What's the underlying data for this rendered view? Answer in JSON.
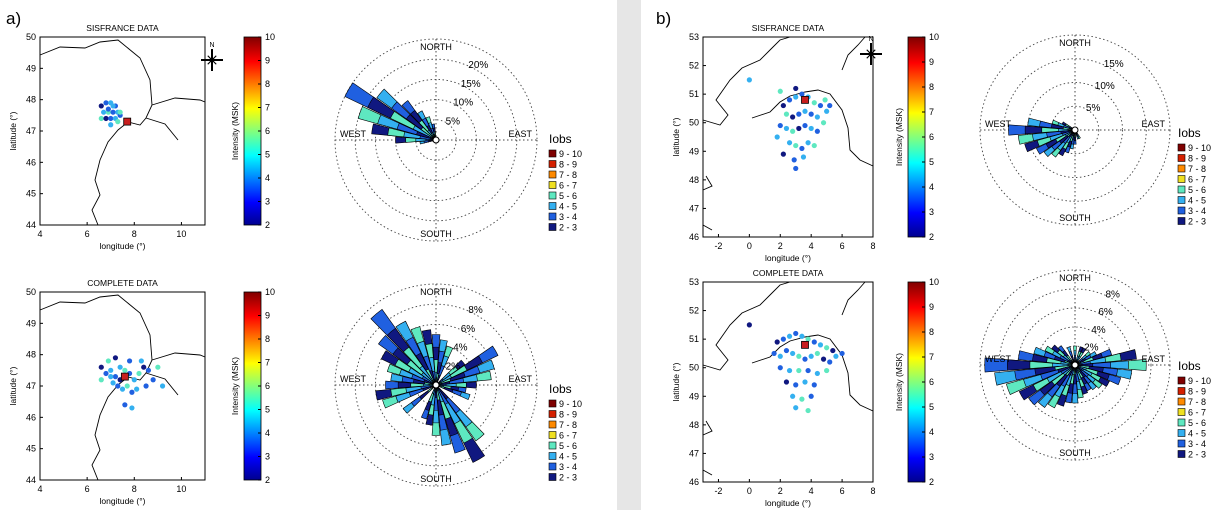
{
  "panel_labels": [
    "a)",
    "b)"
  ],
  "colors": {
    "divider": "#e6e6e6",
    "frame": "#000000",
    "grid": "#444444",
    "rose_edge": "#000000",
    "epicenter": "#c81e1e"
  },
  "colorbar": {
    "label": "Intensity (MSK)",
    "ticks": [
      "2",
      "3",
      "4",
      "5",
      "6",
      "7",
      "8",
      "9",
      "10"
    ],
    "range": [
      2,
      10
    ]
  },
  "legend": {
    "title": "Iobs",
    "entries": [
      "9 - 10",
      "8 - 9",
      "7 - 8",
      "6 - 7",
      "5 - 6",
      "4 - 5",
      "3 - 4",
      "2 - 3"
    ],
    "colors": [
      "#7f0000",
      "#d42000",
      "#ff8a00",
      "#f0e020",
      "#5ee8c0",
      "#34b0f0",
      "#2060e0",
      "#101880"
    ]
  },
  "compass": {
    "north_letter": "N"
  },
  "rose_directions": {
    "north": "NORTH",
    "south": "SOUTH",
    "east": "EAST",
    "west": "WEST"
  },
  "chart_data": [
    {
      "panel": "a)",
      "type": "scatter",
      "title": "SISFRANCE DATA",
      "xlabel": "longitude (°)",
      "ylabel": "latitude (°)",
      "xlim": [
        4,
        11
      ],
      "ylim": [
        44,
        50
      ],
      "xticks": [
        "4",
        "6",
        "8",
        "10"
      ],
      "yticks": [
        "44",
        "45",
        "46",
        "47",
        "48",
        "49",
        "50"
      ],
      "epicenter": [
        7.7,
        47.3
      ],
      "points": [
        [
          6.6,
          47.8
        ],
        [
          6.8,
          47.9
        ],
        [
          7.0,
          47.9
        ],
        [
          7.2,
          47.8
        ],
        [
          6.7,
          47.6
        ],
        [
          6.9,
          47.6
        ],
        [
          7.1,
          47.6
        ],
        [
          7.3,
          47.6
        ],
        [
          6.6,
          47.4
        ],
        [
          6.8,
          47.4
        ],
        [
          7.0,
          47.4
        ],
        [
          7.2,
          47.4
        ],
        [
          7.4,
          47.5
        ],
        [
          7.0,
          47.2
        ],
        [
          7.3,
          47.3
        ],
        [
          6.9,
          47.7
        ],
        [
          7.1,
          47.8
        ],
        [
          7.4,
          47.6
        ]
      ]
    },
    {
      "panel": "a)",
      "type": "rose",
      "title": "",
      "radial_ticks": [
        "5%",
        "10%",
        "15%",
        "20%"
      ],
      "rmax": 25,
      "sectors": [
        [
          300,
          25
        ],
        [
          310,
          18
        ],
        [
          290,
          20
        ],
        [
          280,
          16
        ],
        [
          320,
          12
        ],
        [
          330,
          8
        ],
        [
          340,
          6
        ],
        [
          270,
          10
        ],
        [
          350,
          4
        ],
        [
          260,
          4
        ]
      ]
    },
    {
      "panel": "a)",
      "type": "scatter",
      "title": "COMPLETE DATA",
      "xlabel": "longitude (°)",
      "ylabel": "latitude (°)",
      "xlim": [
        4,
        11
      ],
      "ylim": [
        44,
        50
      ],
      "xticks": [
        "4",
        "6",
        "8",
        "10"
      ],
      "yticks": [
        "44",
        "45",
        "46",
        "47",
        "48",
        "49",
        "50"
      ],
      "epicenter": [
        7.6,
        47.3
      ],
      "points": [
        [
          6.6,
          47.6
        ],
        [
          6.8,
          47.4
        ],
        [
          7.0,
          47.5
        ],
        [
          7.2,
          47.3
        ],
        [
          7.4,
          47.6
        ],
        [
          7.6,
          47.5
        ],
        [
          7.8,
          47.4
        ],
        [
          8.0,
          47.2
        ],
        [
          8.2,
          47.4
        ],
        [
          8.4,
          47.6
        ],
        [
          8.6,
          47.5
        ],
        [
          7.1,
          47.1
        ],
        [
          7.3,
          47.0
        ],
        [
          7.5,
          46.9
        ],
        [
          7.7,
          47.0
        ],
        [
          7.9,
          46.8
        ],
        [
          8.1,
          46.9
        ],
        [
          6.9,
          47.8
        ],
        [
          7.2,
          47.9
        ],
        [
          7.8,
          47.8
        ],
        [
          8.3,
          47.8
        ],
        [
          8.8,
          47.2
        ],
        [
          9.2,
          47.0
        ],
        [
          9.0,
          47.6
        ],
        [
          7.6,
          46.4
        ],
        [
          7.9,
          46.3
        ],
        [
          6.6,
          47.2
        ],
        [
          7.4,
          47.2
        ],
        [
          8.5,
          47.0
        ],
        [
          7.0,
          47.3
        ]
      ]
    },
    {
      "panel": "a)",
      "type": "rose",
      "title": "",
      "radial_ticks": [
        "2%",
        "4%",
        "6%",
        "8%"
      ],
      "rmax": 10,
      "sectors": [
        [
          320,
          9.2
        ],
        [
          330,
          7
        ],
        [
          340,
          6
        ],
        [
          350,
          5.5
        ],
        [
          0,
          5
        ],
        [
          10,
          4.5
        ],
        [
          20,
          4
        ],
        [
          50,
          3.5
        ],
        [
          60,
          6.8
        ],
        [
          70,
          6
        ],
        [
          80,
          5.5
        ],
        [
          90,
          4
        ],
        [
          100,
          3
        ],
        [
          110,
          3.5
        ],
        [
          140,
          6.8
        ],
        [
          150,
          8.5
        ],
        [
          160,
          7
        ],
        [
          170,
          6
        ],
        [
          180,
          5
        ],
        [
          190,
          4
        ],
        [
          200,
          3.5
        ],
        [
          230,
          4
        ],
        [
          250,
          5.5
        ],
        [
          260,
          6
        ],
        [
          270,
          5
        ],
        [
          280,
          4.5
        ],
        [
          290,
          5
        ],
        [
          300,
          6
        ],
        [
          310,
          7
        ]
      ]
    },
    {
      "panel": "b)",
      "type": "scatter",
      "title": "SISFRANCE DATA",
      "xlabel": "longitude (°)",
      "ylabel": "latitude (°)",
      "xlim": [
        -3,
        8
      ],
      "ylim": [
        46,
        53
      ],
      "xticks": [
        "-2",
        "0",
        "2",
        "4",
        "6",
        "8"
      ],
      "yticks": [
        "46",
        "47",
        "48",
        "49",
        "50",
        "51",
        "52",
        "53"
      ],
      "epicenter": [
        3.6,
        50.8
      ],
      "points": [
        [
          2.2,
          50.6
        ],
        [
          2.6,
          50.8
        ],
        [
          3.0,
          50.9
        ],
        [
          3.4,
          51.0
        ],
        [
          3.8,
          50.9
        ],
        [
          4.2,
          50.7
        ],
        [
          4.6,
          50.6
        ],
        [
          5.0,
          50.4
        ],
        [
          2.4,
          50.3
        ],
        [
          2.8,
          50.2
        ],
        [
          3.2,
          50.3
        ],
        [
          3.6,
          50.4
        ],
        [
          4.0,
          50.3
        ],
        [
          4.4,
          50.2
        ],
        [
          4.8,
          50.0
        ],
        [
          2.0,
          49.9
        ],
        [
          2.4,
          49.8
        ],
        [
          2.8,
          49.7
        ],
        [
          3.2,
          49.8
        ],
        [
          3.6,
          49.9
        ],
        [
          4.0,
          49.8
        ],
        [
          4.4,
          49.7
        ],
        [
          2.6,
          49.3
        ],
        [
          3.0,
          49.2
        ],
        [
          3.4,
          49.1
        ],
        [
          3.8,
          49.3
        ],
        [
          4.2,
          49.2
        ],
        [
          2.2,
          48.9
        ],
        [
          2.9,
          48.7
        ],
        [
          3.5,
          48.8
        ],
        [
          3.0,
          48.4
        ],
        [
          1.8,
          49.5
        ],
        [
          4.9,
          50.8
        ],
        [
          5.2,
          50.6
        ],
        [
          0.0,
          51.5
        ],
        [
          2.0,
          51.1
        ],
        [
          3.0,
          51.2
        ]
      ]
    },
    {
      "panel": "b)",
      "type": "rose",
      "title": "",
      "radial_ticks": [
        "5%",
        "10%",
        "15%"
      ],
      "rmax": 20,
      "sectors": [
        [
          270,
          14
        ],
        [
          280,
          10
        ],
        [
          260,
          12
        ],
        [
          250,
          11
        ],
        [
          240,
          9
        ],
        [
          230,
          8
        ],
        [
          220,
          7
        ],
        [
          210,
          6
        ],
        [
          200,
          5
        ],
        [
          190,
          4
        ],
        [
          290,
          5
        ],
        [
          300,
          3
        ],
        [
          180,
          3
        ],
        [
          160,
          2
        ],
        [
          150,
          2
        ]
      ]
    },
    {
      "panel": "b)",
      "type": "scatter",
      "title": "COMPLETE DATA",
      "xlabel": "longitude (°)",
      "ylabel": "latitude (°)",
      "xlim": [
        -3,
        8
      ],
      "ylim": [
        46,
        53
      ],
      "xticks": [
        "-2",
        "0",
        "2",
        "4",
        "6",
        "8"
      ],
      "yticks": [
        "46",
        "47",
        "48",
        "49",
        "50",
        "51",
        "52",
        "53"
      ],
      "epicenter": [
        3.6,
        50.8
      ],
      "points": [
        [
          1.8,
          50.9
        ],
        [
          2.2,
          51.0
        ],
        [
          2.6,
          51.1
        ],
        [
          3.0,
          51.2
        ],
        [
          3.4,
          51.1
        ],
        [
          3.8,
          51.0
        ],
        [
          4.2,
          50.9
        ],
        [
          4.6,
          50.8
        ],
        [
          5.0,
          50.7
        ],
        [
          5.4,
          50.6
        ],
        [
          1.6,
          50.5
        ],
        [
          2.0,
          50.4
        ],
        [
          2.4,
          50.6
        ],
        [
          2.8,
          50.5
        ],
        [
          3.2,
          50.4
        ],
        [
          3.6,
          50.3
        ],
        [
          4.0,
          50.4
        ],
        [
          4.4,
          50.5
        ],
        [
          4.8,
          50.3
        ],
        [
          5.2,
          50.2
        ],
        [
          5.6,
          50.4
        ],
        [
          2.0,
          50.0
        ],
        [
          2.6,
          49.9
        ],
        [
          3.2,
          49.9
        ],
        [
          3.8,
          49.9
        ],
        [
          4.4,
          49.8
        ],
        [
          5.0,
          49.9
        ],
        [
          2.4,
          49.5
        ],
        [
          3.0,
          49.4
        ],
        [
          3.6,
          49.5
        ],
        [
          4.2,
          49.4
        ],
        [
          2.8,
          49.0
        ],
        [
          3.4,
          48.9
        ],
        [
          4.0,
          49.0
        ],
        [
          3.0,
          48.6
        ],
        [
          3.8,
          48.5
        ],
        [
          0.0,
          51.5
        ],
        [
          6.0,
          50.5
        ]
      ]
    },
    {
      "panel": "b)",
      "type": "rose",
      "title": "",
      "radial_ticks": [
        "2%",
        "4%",
        "6%",
        "8%"
      ],
      "rmax": 10,
      "sectors": [
        [
          270,
          9.5
        ],
        [
          260,
          8.5
        ],
        [
          250,
          7.5
        ],
        [
          240,
          6.5
        ],
        [
          230,
          6
        ],
        [
          220,
          5.5
        ],
        [
          210,
          5
        ],
        [
          200,
          4.5
        ],
        [
          190,
          4
        ],
        [
          180,
          4
        ],
        [
          170,
          3.5
        ],
        [
          160,
          3.2
        ],
        [
          150,
          3
        ],
        [
          140,
          3.2
        ],
        [
          130,
          3.5
        ],
        [
          120,
          4
        ],
        [
          110,
          5
        ],
        [
          100,
          6
        ],
        [
          90,
          7.5
        ],
        [
          80,
          6.5
        ],
        [
          70,
          4
        ],
        [
          60,
          2.5
        ],
        [
          50,
          2
        ],
        [
          30,
          2
        ],
        [
          280,
          6
        ],
        [
          290,
          4.5
        ],
        [
          300,
          3.5
        ],
        [
          310,
          3
        ],
        [
          320,
          2.5
        ],
        [
          340,
          2
        ],
        [
          0,
          2
        ],
        [
          20,
          2
        ]
      ]
    }
  ]
}
